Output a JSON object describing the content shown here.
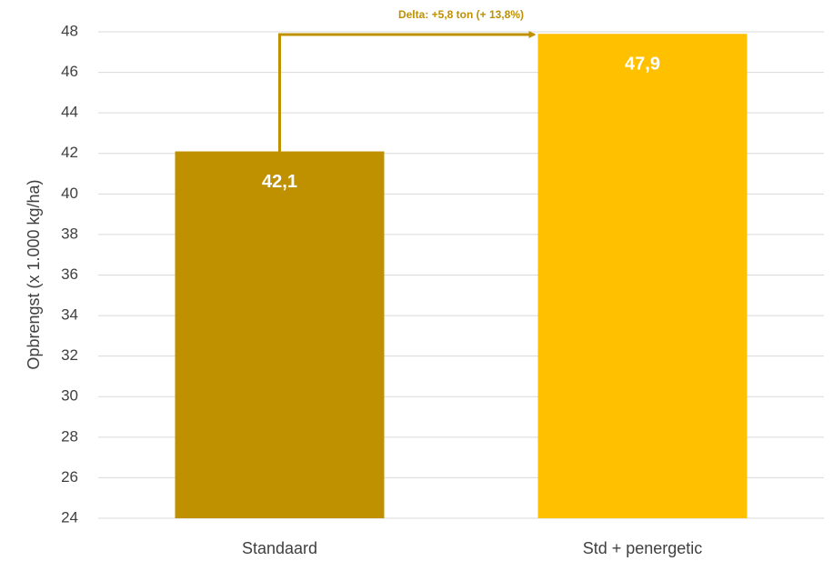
{
  "chart_data": {
    "type": "bar",
    "y_label": "Opbrengst (x 1.000 kg/ha)",
    "annotation": "Delta: +5,8 ton (+ 13,8%)",
    "categories": [
      "Standaard",
      "Std + penergetic"
    ],
    "values": [
      42.1,
      47.9
    ],
    "value_labels": [
      "42,1",
      "47,9"
    ],
    "colors": [
      "#bf9000",
      "#ffc000"
    ],
    "ylim": [
      24,
      48
    ],
    "yticks": [
      24,
      26,
      28,
      30,
      32,
      34,
      36,
      38,
      40,
      42,
      44,
      46,
      48
    ],
    "grid": true
  }
}
